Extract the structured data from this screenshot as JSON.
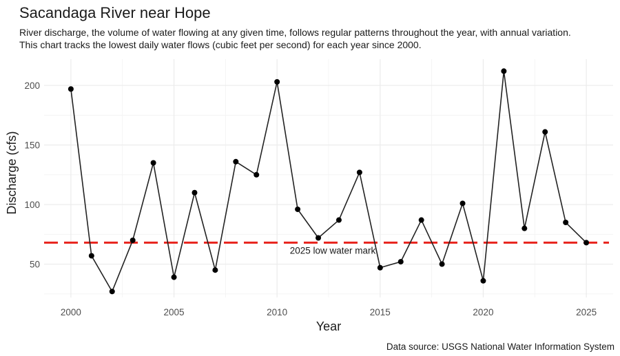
{
  "chart_data": {
    "type": "line",
    "title": "Sacandaga River near Hope",
    "subtitle_lines": [
      "River discharge, the volume of water flowing at any given time, follows regular patterns throughout the year, with annual variation.",
      "This chart tracks the lowest daily water flows (cubic feet per second) for each year since 2000."
    ],
    "caption": "Data source: USGS National Water Information System",
    "xlabel": "Year",
    "ylabel": "Discharge (cfs)",
    "x": [
      2000,
      2001,
      2002,
      2003,
      2004,
      2005,
      2006,
      2007,
      2008,
      2009,
      2010,
      2011,
      2012,
      2013,
      2014,
      2015,
      2016,
      2017,
      2018,
      2019,
      2020,
      2021,
      2022,
      2023,
      2024,
      2025
    ],
    "y": [
      197,
      57,
      27,
      70,
      135,
      39,
      110,
      45,
      136,
      125,
      203,
      96,
      72,
      87,
      127,
      47,
      52,
      87,
      50,
      101,
      36,
      212,
      80,
      161,
      85,
      68
    ],
    "xlim": [
      1998.7,
      2026.3
    ],
    "ylim": [
      22,
      222
    ],
    "xticks": [
      2000,
      2005,
      2010,
      2015,
      2020,
      2025
    ],
    "yticks": [
      50,
      100,
      150,
      200
    ],
    "grid": true,
    "line_color": "#222222",
    "reference_line": {
      "value": 68,
      "label": "2025 low water mark",
      "color": "#e8231c"
    }
  }
}
